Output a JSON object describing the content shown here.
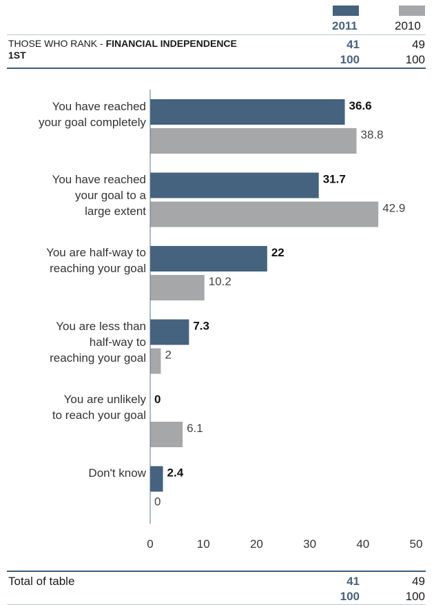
{
  "colors": {
    "series_2011": "#45627E",
    "series_2010": "#A6A7A9",
    "rule": "#3e5a76"
  },
  "header": {
    "years": [
      "2011",
      "2010"
    ],
    "row_label_prefix": "THOSE WHO RANK - ",
    "row_label_bold": "FINANCIAL INDEPENDENCE",
    "row_label_line2": "1ST",
    "values_2011": [
      "41",
      "100"
    ],
    "values_2010": [
      "49",
      "100"
    ]
  },
  "footer": {
    "label": "Total of table",
    "values_2011": [
      "41",
      "100"
    ],
    "values_2010": [
      "49",
      "100"
    ]
  },
  "chart_data": {
    "type": "bar",
    "orientation": "horizontal",
    "categories": [
      [
        "You have reached",
        "your goal completely"
      ],
      [
        "You have reached",
        "your goal to a",
        "large extent"
      ],
      [
        "You are half-way to",
        "reaching your goal"
      ],
      [
        "You are less than",
        "half-way to",
        "reaching your goal"
      ],
      [
        "You are unlikely",
        "to reach your goal"
      ],
      [
        "Don't know"
      ]
    ],
    "series": [
      {
        "name": "2011",
        "values": [
          36.6,
          31.7,
          22,
          7.3,
          0,
          2.4
        ],
        "labels": [
          "36.6",
          "31.7",
          "22",
          "7.3",
          "0",
          "2.4"
        ]
      },
      {
        "name": "2010",
        "values": [
          38.8,
          42.9,
          10.2,
          2,
          6.1,
          0
        ],
        "labels": [
          "38.8",
          "42.9",
          "10.2",
          "2",
          "6.1",
          "0"
        ]
      }
    ],
    "xlim": [
      0,
      50
    ],
    "xticks": [
      "0",
      "10",
      "20",
      "30",
      "40",
      "50"
    ],
    "legend": "top-right"
  }
}
